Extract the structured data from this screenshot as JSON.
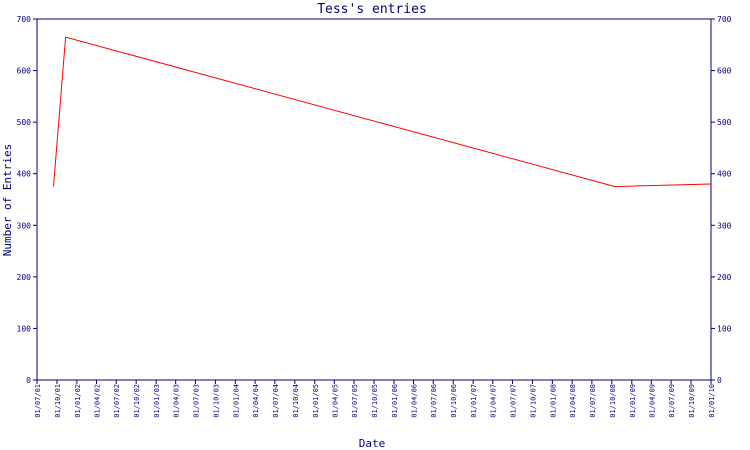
{
  "chart_data": {
    "type": "line",
    "title": "Tess's entries",
    "xlabel": "Date",
    "ylabel": "Number of Entries",
    "ylim": [
      0,
      700
    ],
    "y_ticks": [
      0,
      100,
      200,
      300,
      400,
      500,
      600,
      700
    ],
    "x_ticks": [
      "01/07/01",
      "01/10/01",
      "01/01/02",
      "01/04/02",
      "01/07/02",
      "01/10/02",
      "01/01/03",
      "01/04/03",
      "01/07/03",
      "01/10/03",
      "01/01/04",
      "01/04/04",
      "01/07/04",
      "01/10/04",
      "01/01/05",
      "01/04/05",
      "01/07/05",
      "01/10/05",
      "01/01/06",
      "01/04/06",
      "01/07/06",
      "01/10/06",
      "01/01/07",
      "01/04/07",
      "01/07/07",
      "01/10/07",
      "01/01/08",
      "01/04/08",
      "01/07/08",
      "01/10/08",
      "01/01/09",
      "01/04/09",
      "01/07/09",
      "01/10/09",
      "01/01/10"
    ],
    "right_axis": true,
    "grid": false,
    "series": [
      {
        "color": "#ff0000",
        "points": [
          {
            "x": "2001-09-15",
            "y": 375
          },
          {
            "x": "2001-11-10",
            "y": 665
          },
          {
            "x": "2008-10-15",
            "y": 375
          },
          {
            "x": "2010-01-01",
            "y": 380
          }
        ]
      }
    ],
    "colors": {
      "axis": "#000080",
      "line": "#ff0000"
    }
  }
}
